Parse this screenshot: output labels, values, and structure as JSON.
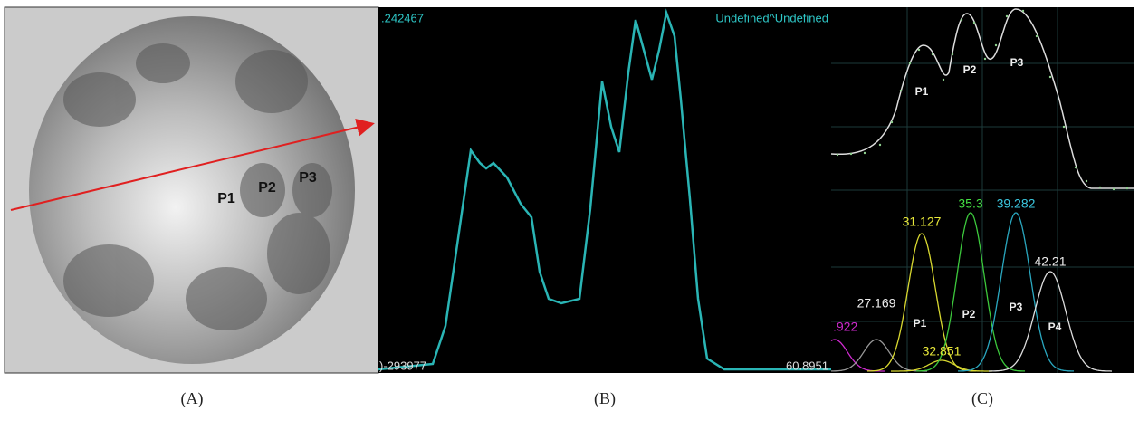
{
  "panel_a": {
    "labels": [
      "P1",
      "P2",
      "P3"
    ],
    "caption": "(A)"
  },
  "panel_b": {
    "top_left": ".242467",
    "top_right": "Undefined^Undefined",
    "bottom_left": ")-293977",
    "bottom_right": "60.8951",
    "caption": "(B)"
  },
  "panel_c": {
    "top_labels": [
      "P1",
      "P2",
      "P3"
    ],
    "peak_values": [
      ".922",
      "27.169",
      "31.127",
      "32.851",
      "35.3",
      "39.282",
      "42.21"
    ],
    "bottom_labels": [
      "P1",
      "P2",
      "P3",
      "P4"
    ],
    "caption": "(C)"
  }
}
